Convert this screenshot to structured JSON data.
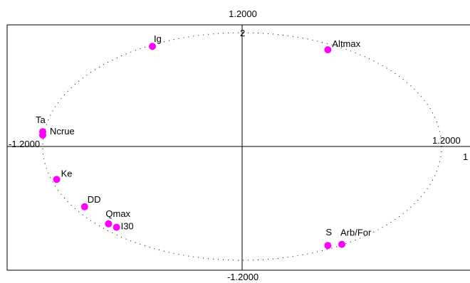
{
  "chart_data": {
    "type": "scatter",
    "title": "",
    "xlabel": "",
    "ylabel": "",
    "xlim": [
      -1.2,
      1.2
    ],
    "ylim": [
      -1.2,
      1.2
    ],
    "axis_labels": {
      "top": "1.2000",
      "bottom": "-1.2000",
      "left": "-1.2000",
      "right": "1.2000",
      "axis_number_x": "1",
      "axis_number_y": "2"
    },
    "correlation_circle": {
      "radius": 1.0,
      "style": "dotted"
    },
    "points": [
      {
        "label": "Ig",
        "x": -0.45,
        "y": 0.88
      },
      {
        "label": "Altmax",
        "x": 0.43,
        "y": 0.85
      },
      {
        "label": "Ta",
        "x": -1.0,
        "y": 0.13
      },
      {
        "label": "Ncrue",
        "x": -1.0,
        "y": 0.1
      },
      {
        "label": "Ke",
        "x": -0.93,
        "y": -0.29
      },
      {
        "label": "DD",
        "x": -0.79,
        "y": -0.53
      },
      {
        "label": "Qmax",
        "x": -0.67,
        "y": -0.68
      },
      {
        "label": "I30",
        "x": -0.63,
        "y": -0.71
      },
      {
        "label": "S",
        "x": 0.43,
        "y": -0.87
      },
      {
        "label": "Arb/For",
        "x": 0.5,
        "y": -0.86
      }
    ],
    "marker_color": "#ff00ff"
  }
}
